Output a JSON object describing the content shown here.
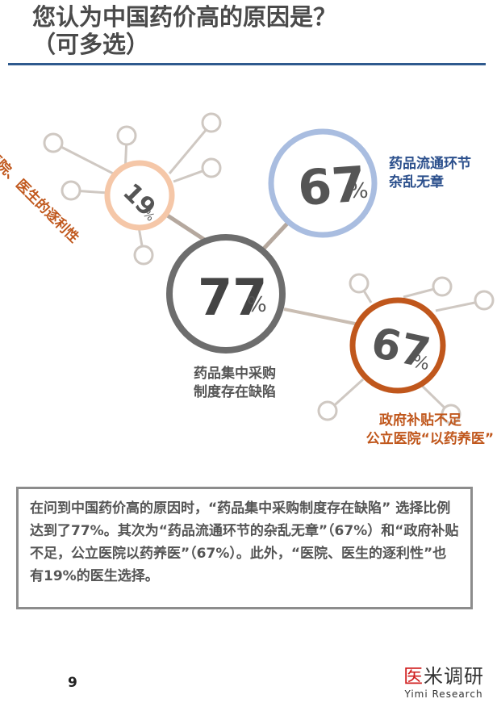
{
  "title": "您认为中国药价高的原因是？（可多选）",
  "title_line1": "您认为中国药价高的原因是？",
  "title_line2": "（可多选）",
  "nodes": {
    "center": {
      "value": "77",
      "unit": "%",
      "label_line1": "药品集中采购",
      "label_line2": "制度存在缺陷",
      "color": "#6d6d6d"
    },
    "top_right": {
      "value": "67",
      "unit": "%",
      "label_line1": "药品流通环节",
      "label_line2": "杂乱无章",
      "color": "#2b4f8c",
      "ring": "#a9bde0"
    },
    "bottom_right": {
      "value": "67",
      "unit": "%",
      "label_line1": "政府补贴不足",
      "label_line2": "公立医院“以药养医”",
      "color": "#c0571c",
      "ring": "#c0571c"
    },
    "top_left": {
      "value": "19",
      "unit": "%",
      "label": "医院、医生的逐利性",
      "color": "#c0571c",
      "ring": "#f5c7a8"
    }
  },
  "summary": "在问到中国药价高的原因时，“药品集中采购制度存在缺陷” 选择比例达到了77%。其次为“药品流通环节的杂乱无章”（67%）和“政府补贴不足，公立医院以药养医”（67%）。此外，“医院、医生的逐利性”也有19%的医生选择。",
  "page_number": "9",
  "brand": {
    "cn_first": "医",
    "cn_rest": "米调研",
    "en": "Yimi Research"
  }
}
